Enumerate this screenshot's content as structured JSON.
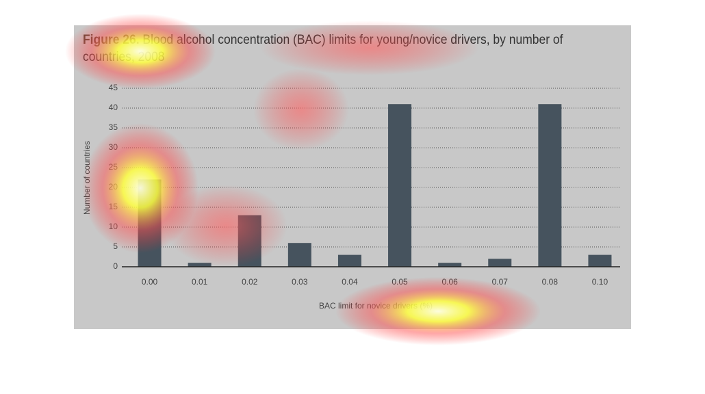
{
  "chart_data": {
    "type": "bar",
    "figure_label": "Figure 26.",
    "title": "Blood alcohol concentration (BAC) limits for young/novice drivers, by number of countries, 2008",
    "x_label": "BAC limit for novice drivers (%)",
    "y_label": "Number of countries",
    "categories": [
      "0.00",
      "0.01",
      "0.02",
      "0.03",
      "0.04",
      "0.05",
      "0.06",
      "0.07",
      "0.08",
      "0.10"
    ],
    "values": [
      22,
      1,
      13,
      6,
      3,
      41,
      1,
      2,
      41,
      3
    ],
    "color": "#46535e",
    "ylim": [
      0,
      45
    ],
    "yticks": [
      0,
      5,
      10,
      15,
      20,
      25,
      30,
      35,
      40,
      45
    ],
    "grid": true
  }
}
